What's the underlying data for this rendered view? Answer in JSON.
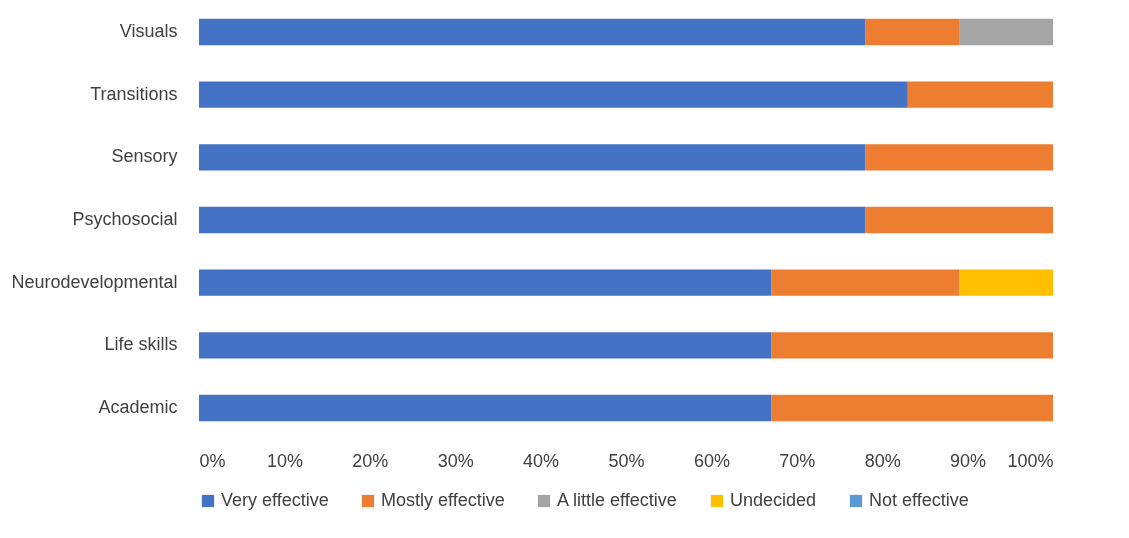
{
  "chart_data": {
    "type": "bar",
    "orientation": "horizontal",
    "stacked": true,
    "categories": [
      "Visuals",
      "Transitions",
      "Sensory",
      "Psychosocial",
      "Neurodevelopmental",
      "Life skills",
      "Academic"
    ],
    "series": [
      {
        "name": "Very effective",
        "color": "#4472c4",
        "values": [
          78,
          83,
          78,
          78,
          67,
          67,
          67
        ]
      },
      {
        "name": "Mostly effective",
        "color": "#ed7d31",
        "values": [
          11,
          17,
          22,
          22,
          22,
          33,
          33
        ]
      },
      {
        "name": "A little effective",
        "color": "#a5a5a5",
        "values": [
          11,
          null,
          null,
          null,
          null,
          null,
          null
        ]
      },
      {
        "name": "Undecided",
        "color": "#ffc000",
        "values": [
          null,
          null,
          null,
          null,
          11,
          null,
          null
        ]
      },
      {
        "name": "Not effective",
        "color": "#5b9bd5",
        "values": [
          null,
          null,
          null,
          null,
          null,
          null,
          null
        ]
      }
    ],
    "xlim": [
      0,
      100
    ],
    "xticks": [
      {
        "value": 0,
        "label": "0%"
      },
      {
        "value": 10,
        "label": "10%"
      },
      {
        "value": 20,
        "label": "20%"
      },
      {
        "value": 30,
        "label": "30%"
      },
      {
        "value": 40,
        "label": "40%"
      },
      {
        "value": 50,
        "label": "50%"
      },
      {
        "value": 60,
        "label": "60%"
      },
      {
        "value": 70,
        "label": "70%"
      },
      {
        "value": 80,
        "label": "80%"
      },
      {
        "value": 90,
        "label": "90%"
      },
      {
        "value": 100,
        "label": "100%"
      }
    ],
    "grid": false,
    "legend": "bottom"
  }
}
